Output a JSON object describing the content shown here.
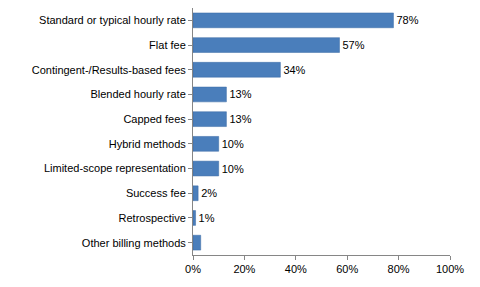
{
  "chart_data": {
    "type": "bar",
    "orientation": "horizontal",
    "categories": [
      "Standard or typical hourly rate",
      "Flat fee",
      "Contingent-/Results-based fees",
      "Blended hourly rate",
      "Capped fees",
      "Hybrid methods",
      "Limited-scope representation",
      "Success fee",
      "Retrospective",
      "Other billing methods"
    ],
    "values": [
      78,
      57,
      34,
      13,
      13,
      10,
      10,
      2,
      1,
      3
    ],
    "value_labels": [
      "78%",
      "57%",
      "34%",
      "13%",
      "13%",
      "10%",
      "10%",
      "2%",
      "1%",
      null
    ],
    "data_labels": true,
    "color": "#4a7ebb",
    "xlim": [
      0,
      100
    ],
    "xticks": [
      {
        "value": 0,
        "label": "0%"
      },
      {
        "value": 20,
        "label": "20%"
      },
      {
        "value": 40,
        "label": "40%"
      },
      {
        "value": 60,
        "label": "60%"
      },
      {
        "value": 80,
        "label": "80%"
      },
      {
        "value": 100,
        "label": "100%"
      }
    ],
    "grid": false
  }
}
